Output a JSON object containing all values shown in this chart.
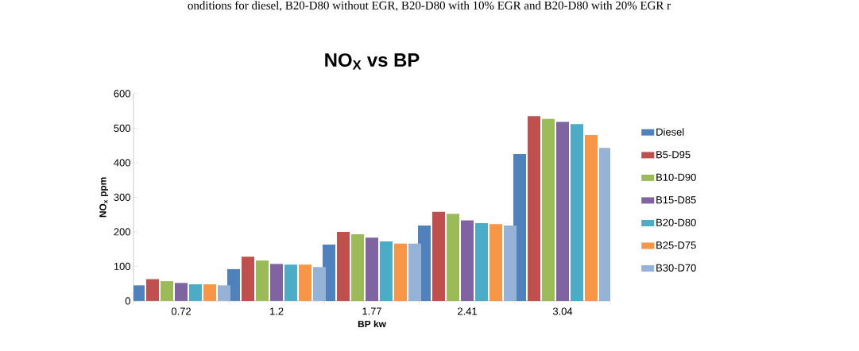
{
  "chart_data": {
    "type": "bar",
    "title": "NO$_{X}$ vs BP",
    "xlabel": "BP kw",
    "ylabel": "NO$_{x}$ ppm",
    "annotations": [
      "onditions for diesel, B20-D80 without EGR, B20-D80 with 10% EGR and B20-D80 with 20% EGR r"
    ],
    "categories": [
      "0.72",
      "1.2",
      "1.77",
      "2.41",
      "3.04"
    ],
    "ylim": [
      0,
      600
    ],
    "yticks": [
      0,
      100,
      200,
      300,
      400,
      500,
      600
    ],
    "grid": false,
    "legend": "right",
    "series": [
      {
        "name": "Diesel",
        "color": "#4f81bd",
        "values": [
          45,
          92,
          163,
          218,
          425
        ]
      },
      {
        "name": "B5-D95",
        "color": "#c0504d",
        "values": [
          63,
          128,
          200,
          258,
          535
        ]
      },
      {
        "name": "B10-D90",
        "color": "#9bbb59",
        "values": [
          57,
          117,
          193,
          252,
          527
        ]
      },
      {
        "name": "B15-D85",
        "color": "#8064a2",
        "values": [
          52,
          107,
          183,
          233,
          518
        ]
      },
      {
        "name": "B20-D80",
        "color": "#4bacc6",
        "values": [
          48,
          105,
          172,
          225,
          512
        ]
      },
      {
        "name": "B25-D75",
        "color": "#f79646",
        "values": [
          48,
          105,
          166,
          222,
          480
        ]
      },
      {
        "name": "B30-D70",
        "color": "#95b3d7",
        "values": [
          45,
          98,
          166,
          218,
          443
        ]
      }
    ]
  }
}
